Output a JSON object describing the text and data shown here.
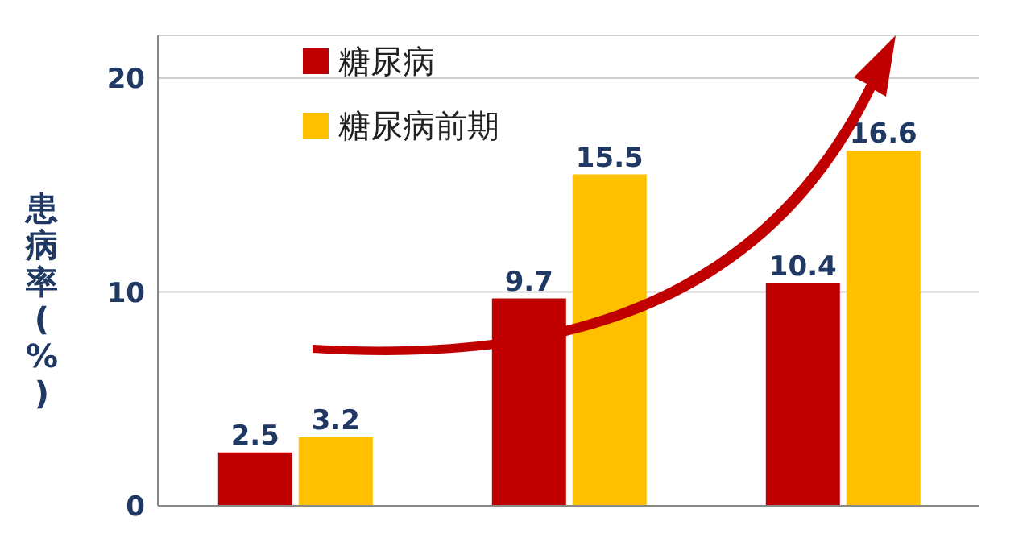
{
  "chart_data": {
    "type": "bar",
    "ylabel": "患病率(%)",
    "categories": [
      null,
      null,
      null
    ],
    "series": [
      {
        "name": "糖尿病",
        "color": "#c00000",
        "values": [
          2.5,
          9.7,
          10.4
        ]
      },
      {
        "name": "糖尿病前期",
        "color": "#ffc000",
        "values": [
          3.2,
          15.5,
          16.6
        ]
      }
    ],
    "ylim": [
      0,
      22
    ],
    "yticks": [
      0,
      10,
      20
    ],
    "grid": "y",
    "legend": "top left",
    "data_labels": true
  }
}
